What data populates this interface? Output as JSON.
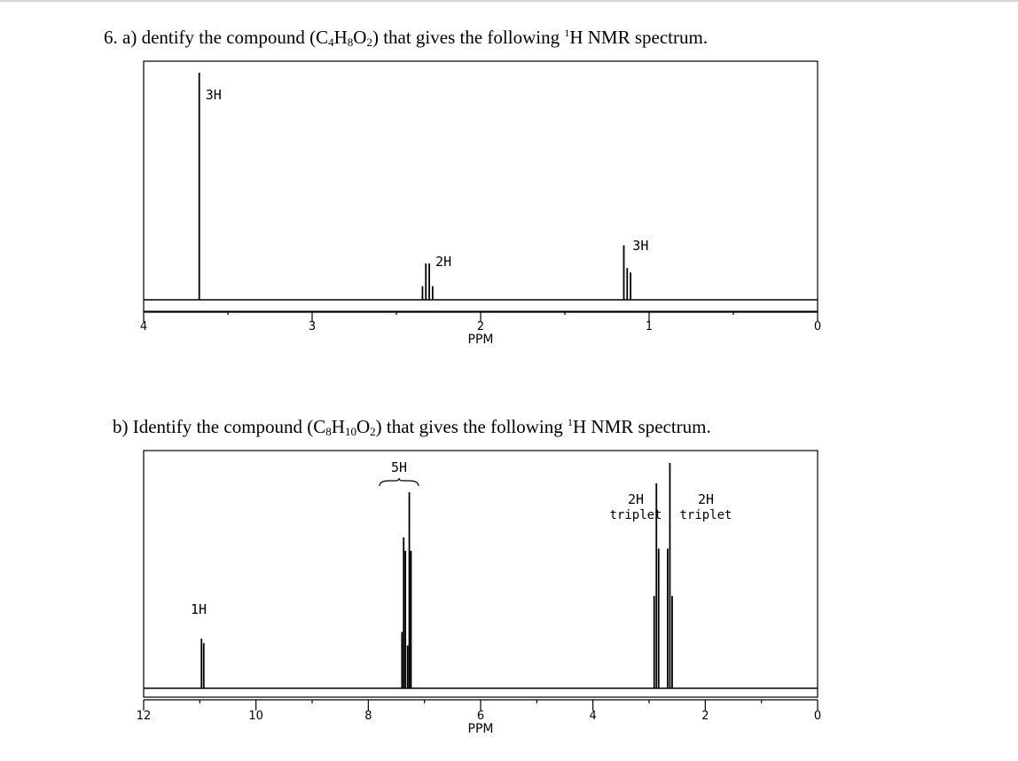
{
  "question_a": {
    "prefix": "6. a) dentify the compound (C",
    "f1": "4",
    "m1": "H",
    "f2": "8",
    "m2": "O",
    "f3": "2",
    "mid": ") that gives the following ",
    "sup": "1",
    "suffix": "H NMR spectrum."
  },
  "question_b": {
    "prefix": "b) Identify the compound (C",
    "f1": "8",
    "m1": "H",
    "f2": "10",
    "m2": "O",
    "f3": "2",
    "mid": ") that gives the following ",
    "sup": "1",
    "suffix": "H NMR spectrum."
  },
  "chart_data": [
    {
      "type": "line",
      "xlabel": "PPM",
      "xlim": [
        4,
        0
      ],
      "reversed_x": true,
      "tick_labels": [
        "4",
        "3",
        "2",
        "1",
        "0"
      ],
      "peaks": [
        {
          "shift": 3.67,
          "lines": [
            {
              "ppm": 3.67,
              "height": 1.0
            }
          ],
          "label": "3H",
          "multiplicity": "singlet"
        },
        {
          "shift": 2.31,
          "lines": [
            {
              "ppm": 2.345,
              "height": 0.06
            },
            {
              "ppm": 2.325,
              "height": 0.16
            },
            {
              "ppm": 2.305,
              "height": 0.16
            },
            {
              "ppm": 2.285,
              "height": 0.06
            }
          ],
          "label": "2H",
          "multiplicity": "quartet"
        },
        {
          "shift": 1.13,
          "lines": [
            {
              "ppm": 1.15,
              "height": 0.24
            },
            {
              "ppm": 1.13,
              "height": 0.14
            },
            {
              "ppm": 1.11,
              "height": 0.12
            }
          ],
          "label": "3H",
          "multiplicity": "triplet"
        }
      ]
    },
    {
      "type": "line",
      "xlabel": "PPM",
      "xlim": [
        12,
        0
      ],
      "reversed_x": true,
      "tick_labels": [
        "12",
        "10",
        "8",
        "6",
        "4",
        "2",
        "0"
      ],
      "peaks": [
        {
          "shift": 10.95,
          "lines": [
            {
              "ppm": 10.97,
              "height": 0.22
            },
            {
              "ppm": 10.93,
              "height": 0.2
            }
          ],
          "label": "1H",
          "multiplicity": "singlet"
        },
        {
          "shift": 7.3,
          "lines": [
            {
              "ppm": 7.4,
              "height": 0.25
            },
            {
              "ppm": 7.37,
              "height": 0.67
            },
            {
              "ppm": 7.34,
              "height": 0.61
            },
            {
              "ppm": 7.3,
              "height": 0.19
            },
            {
              "ppm": 7.27,
              "height": 0.87
            },
            {
              "ppm": 7.24,
              "height": 0.61
            }
          ],
          "label": "5H",
          "brace": true
        },
        {
          "shift": 2.87,
          "lines": [
            {
              "ppm": 2.91,
              "height": 0.41
            },
            {
              "ppm": 2.87,
              "height": 0.91
            },
            {
              "ppm": 2.83,
              "height": 0.62
            }
          ],
          "label": "2H",
          "sublabel": "triplet",
          "multiplicity": "triplet"
        },
        {
          "shift": 2.63,
          "lines": [
            {
              "ppm": 2.67,
              "height": 0.62
            },
            {
              "ppm": 2.63,
              "height": 1.0
            },
            {
              "ppm": 2.59,
              "height": 0.41
            }
          ],
          "label": "2H",
          "sublabel": "triplet",
          "multiplicity": "triplet"
        }
      ]
    }
  ]
}
